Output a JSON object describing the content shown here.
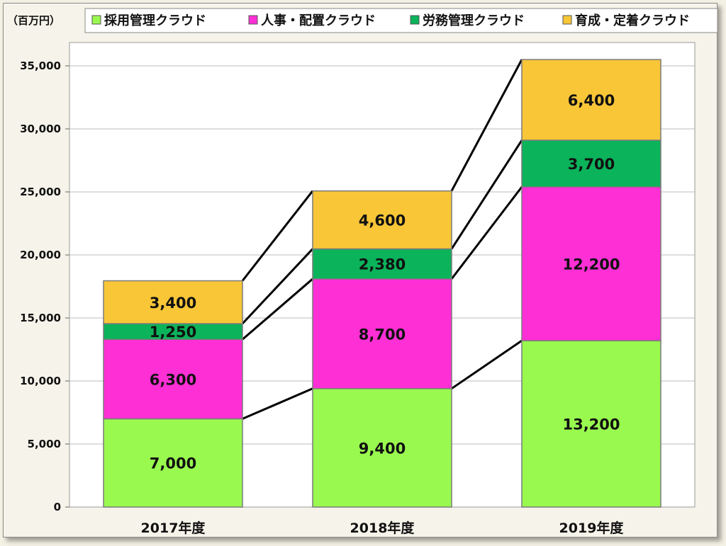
{
  "chart_data": {
    "type": "bar",
    "stacked": true,
    "unit": "（百万円）",
    "categories": [
      "2017年度",
      "2018年度",
      "2019年度"
    ],
    "series": [
      {
        "name": "採用管理クラウド",
        "color": "#99f94f",
        "values": [
          7000,
          9400,
          13200
        ],
        "labels": [
          "7,000",
          "9,400",
          "13,200"
        ]
      },
      {
        "name": "人事・配置クラウド",
        "color": "#ff2fd6",
        "values": [
          6300,
          8700,
          12200
        ],
        "labels": [
          "6,300",
          "8,700",
          "12,200"
        ]
      },
      {
        "name": "労務管理クラウド",
        "color": "#0bb35b",
        "values": [
          1250,
          2380,
          3700
        ],
        "labels": [
          "1,250",
          "2,380",
          "3,700"
        ]
      },
      {
        "name": "育成・定着クラウド",
        "color": "#f8c637",
        "values": [
          3400,
          4600,
          6400
        ],
        "labels": [
          "3,400",
          "4,600",
          "6,400"
        ]
      }
    ],
    "ylim": [
      0,
      35000
    ],
    "yticks": [
      0,
      5000,
      10000,
      15000,
      20000,
      25000,
      30000,
      35000
    ],
    "ytick_labels": [
      "0",
      "5,000",
      "10,000",
      "15,000",
      "20,000",
      "25,000",
      "30,000",
      "35,000"
    ],
    "legend_position": "top",
    "grid": true,
    "connector_lines": true
  }
}
